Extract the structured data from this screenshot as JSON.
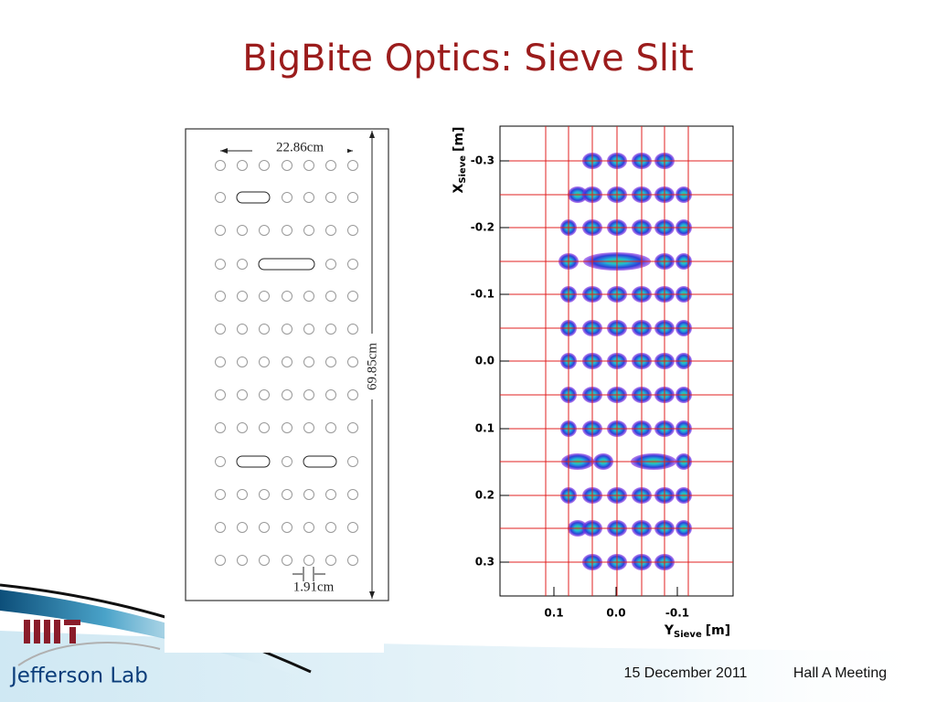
{
  "title": "BigBite Optics: Sieve Slit",
  "sieve_diagram": {
    "width_label": "22.86cm",
    "height_label": "69.85cm",
    "hole_spacing_label": "1.91cm"
  },
  "plot": {
    "y_axis_label": {
      "main": "X",
      "sub": "Sieve",
      "unit": "[m]"
    },
    "x_axis_label": {
      "main": "Y",
      "sub": "Sieve",
      "unit": "[m]"
    },
    "yticks": [
      "-0.3",
      "-0.2",
      "-0.1",
      "0.0",
      "0.1",
      "0.2",
      "0.3"
    ],
    "xticks": [
      "0.1",
      "0.0",
      "-0.1"
    ]
  },
  "footer": {
    "date": "15 December 2011",
    "meeting": "Hall A Meeting",
    "logo": "Jefferson Lab"
  }
}
